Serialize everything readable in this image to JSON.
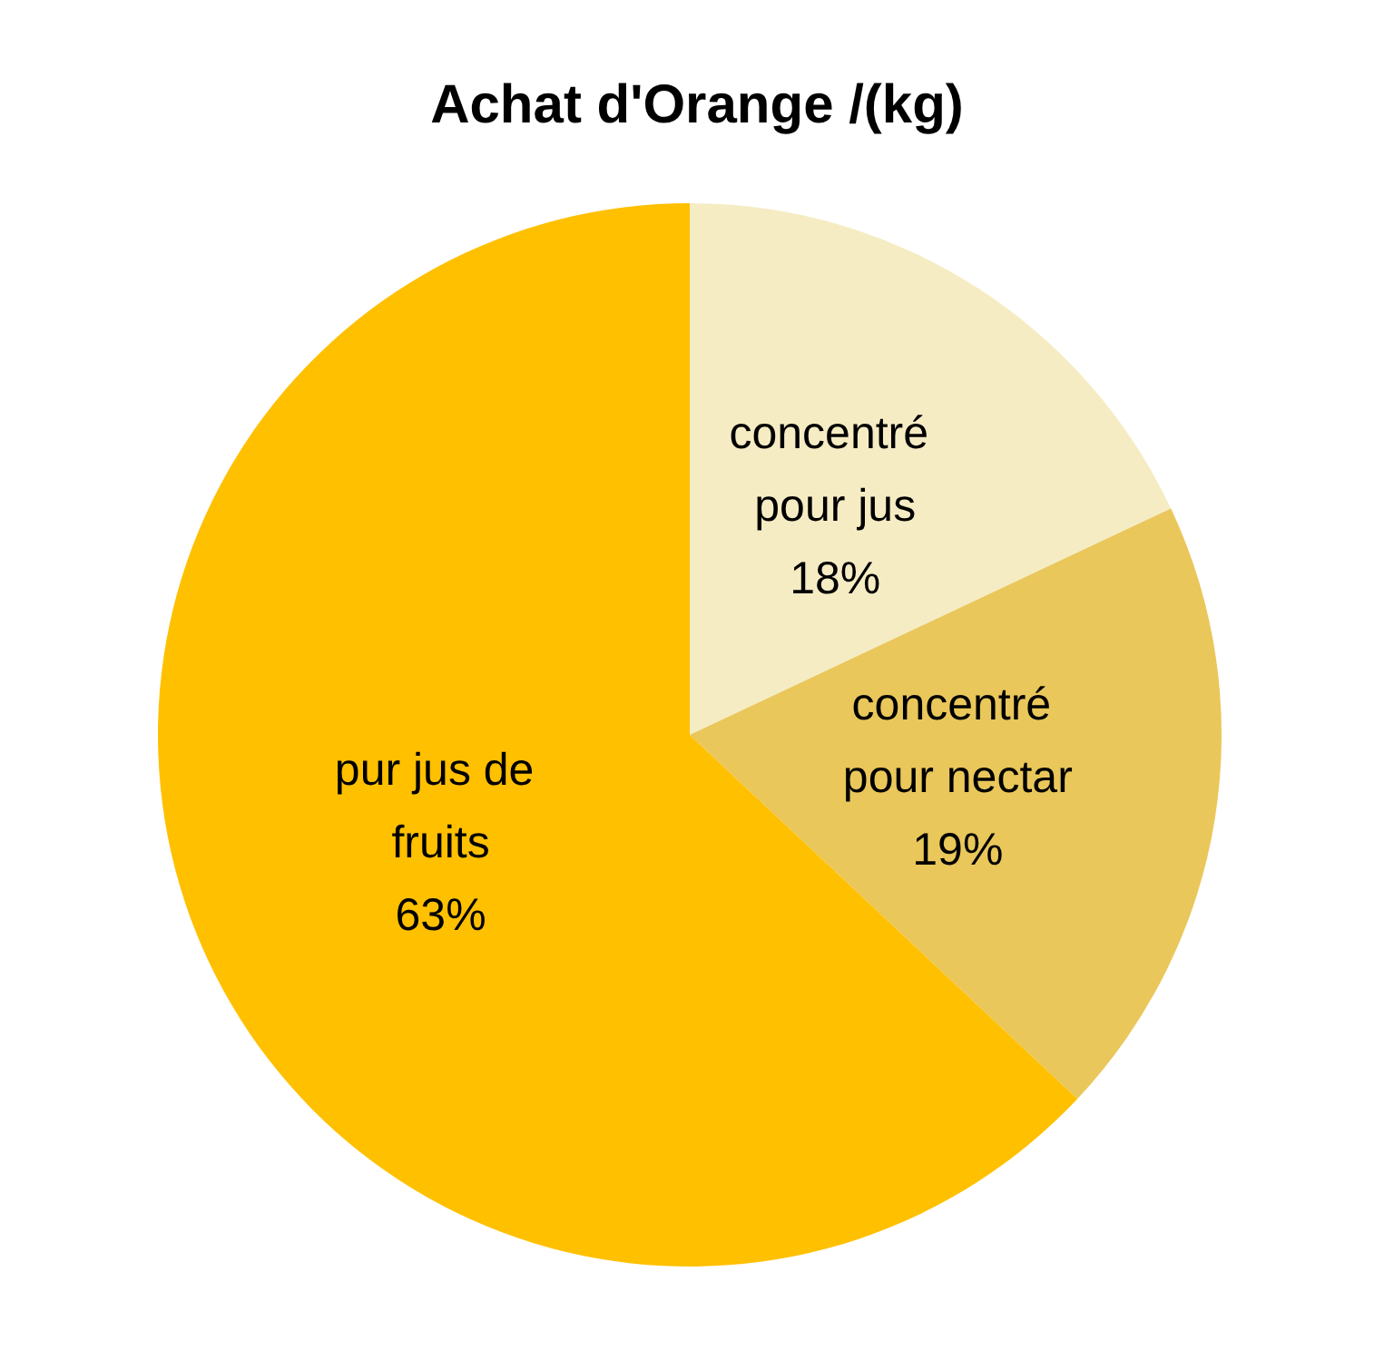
{
  "chart_data": {
    "type": "pie",
    "title": "Achat d'Orange /(kg)",
    "categories": [
      "concentré pour jus",
      "concentré pour nectar",
      "pur jus de fruits"
    ],
    "values": [
      18,
      19,
      63
    ],
    "value_labels": [
      "18%",
      "19%",
      "63%"
    ],
    "colors": [
      "#f6ecc4",
      "#e9c75a",
      "#ffc000"
    ],
    "legend": false
  }
}
